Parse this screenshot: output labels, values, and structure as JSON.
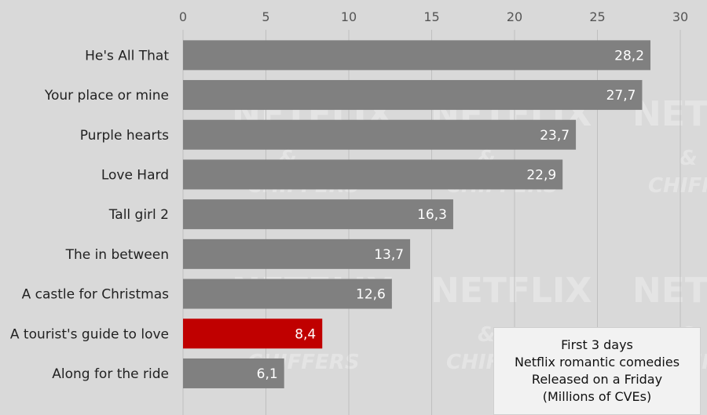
{
  "chart_data": {
    "type": "bar",
    "orientation": "horizontal",
    "categories": [
      "He's All That",
      "Your place or mine",
      "Purple hearts",
      "Love Hard",
      "Tall girl 2",
      "The in between",
      "A castle for Christmas",
      "A tourist's guide to love",
      "Along for the ride"
    ],
    "values": [
      28.2,
      27.7,
      23.7,
      22.9,
      16.3,
      13.7,
      12.6,
      8.4,
      6.1
    ],
    "value_labels": [
      "28,2",
      "27,7",
      "23,7",
      "22,9",
      "16,3",
      "13,7",
      "12,6",
      "8,4",
      "6,1"
    ],
    "highlight_index": 7,
    "xlim": [
      0,
      30
    ],
    "x_ticks": [
      0,
      5,
      10,
      15,
      20,
      25,
      30
    ],
    "x_tick_labels": [
      "0",
      "5",
      "10",
      "15",
      "20",
      "25",
      "30"
    ],
    "axis_position": "top",
    "grid": true,
    "colors": {
      "bar": "#808080",
      "highlight": "#c00000",
      "background": "#d9d9d9",
      "grid": "#bfbfbf",
      "label_text": "#ffffff"
    },
    "annotation": [
      "First 3 days",
      "Netflix romantic comedies",
      "Released on a Friday",
      "(Millions of CVEs)"
    ],
    "watermark": {
      "brand": "NETFLIX",
      "ampersand": "&",
      "partner": "CHIFFERS"
    }
  }
}
